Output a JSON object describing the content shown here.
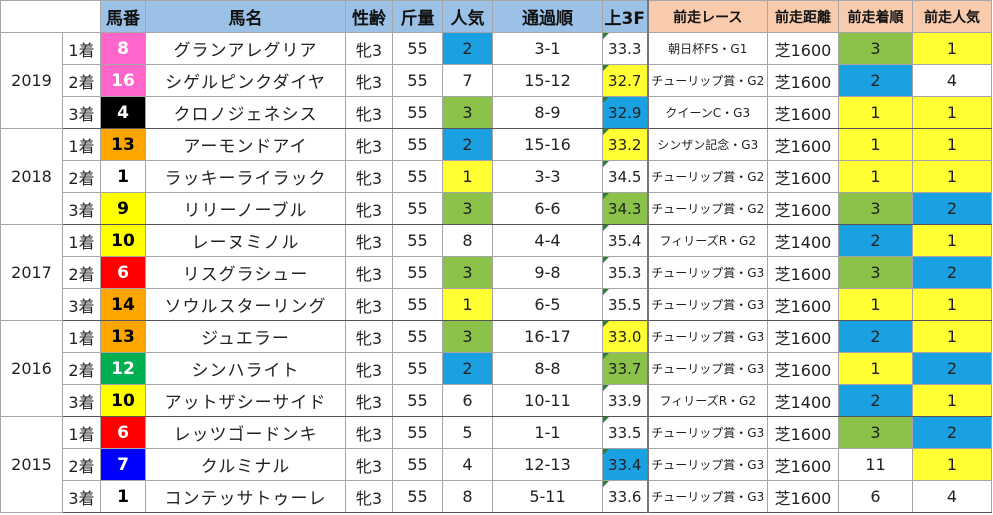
{
  "headers": {
    "blank": "",
    "number": "馬番",
    "name": "馬名",
    "sex_age": "性齢",
    "weight": "斤量",
    "popularity": "人気",
    "passing": "通過順",
    "last3f": "上3F",
    "prev_race": "前走レース",
    "prev_distance": "前走距離",
    "prev_finish": "前走着順",
    "prev_popularity": "前走人気"
  },
  "colors": {
    "header_bg": "#9bc2e6",
    "prev_header_bg": "#f8cbad",
    "blue_cell": "#1ba1e2",
    "green_cell": "#8bc34a",
    "yellow_cell": "#ffff33",
    "gate_1": "#ffffff",
    "gate_2": "#000000",
    "gate_3": "#ff0000",
    "gate_4": "#0000ff",
    "gate_5": "#ffff00",
    "gate_6": "#00b050",
    "gate_7": "#ffa500",
    "gate_8": "#ff66cc"
  },
  "years": [
    {
      "year": "2019",
      "rows": [
        {
          "place": "1着",
          "number": "8",
          "gate": 8,
          "name": "グランアレグリア",
          "sex_age": "牝3",
          "weight": "55",
          "popularity": "2",
          "pop_hl": "blue",
          "passing": "3-1",
          "last3f": "33.3",
          "l3f_hl": "",
          "prev_race": "朝日杯FS・G1",
          "prev_distance": "芝1600",
          "prev_finish": "3",
          "fin_hl": "green",
          "prev_popularity": "1",
          "ppop_hl": "yellow"
        },
        {
          "place": "2着",
          "number": "16",
          "gate": 8,
          "name": "シゲルピンクダイヤ",
          "sex_age": "牝3",
          "weight": "55",
          "popularity": "7",
          "pop_hl": "",
          "passing": "15-12",
          "last3f": "32.7",
          "l3f_hl": "yellow",
          "prev_race": "チューリップ賞・G2",
          "prev_distance": "芝1600",
          "prev_finish": "2",
          "fin_hl": "blue",
          "prev_popularity": "4",
          "ppop_hl": ""
        },
        {
          "place": "3着",
          "number": "4",
          "gate": 2,
          "name": "クロノジェネシス",
          "sex_age": "牝3",
          "weight": "55",
          "popularity": "3",
          "pop_hl": "green",
          "passing": "8-9",
          "last3f": "32.9",
          "l3f_hl": "blue",
          "prev_race": "クイーンC・G3",
          "prev_distance": "芝1600",
          "prev_finish": "1",
          "fin_hl": "yellow",
          "prev_popularity": "1",
          "ppop_hl": "yellow"
        }
      ]
    },
    {
      "year": "2018",
      "rows": [
        {
          "place": "1着",
          "number": "13",
          "gate": 7,
          "name": "アーモンドアイ",
          "sex_age": "牝3",
          "weight": "55",
          "popularity": "2",
          "pop_hl": "blue",
          "passing": "15-16",
          "last3f": "33.2",
          "l3f_hl": "yellow",
          "prev_race": "シンザン記念・G3",
          "prev_distance": "芝1600",
          "prev_finish": "1",
          "fin_hl": "yellow",
          "prev_popularity": "1",
          "ppop_hl": "yellow"
        },
        {
          "place": "2着",
          "number": "1",
          "gate": 1,
          "name": "ラッキーライラック",
          "sex_age": "牝3",
          "weight": "55",
          "popularity": "1",
          "pop_hl": "yellow",
          "passing": "3-3",
          "last3f": "34.5",
          "l3f_hl": "",
          "prev_race": "チューリップ賞・G2",
          "prev_distance": "芝1600",
          "prev_finish": "1",
          "fin_hl": "yellow",
          "prev_popularity": "1",
          "ppop_hl": "yellow"
        },
        {
          "place": "3着",
          "number": "9",
          "gate": 5,
          "name": "リリーノーブル",
          "sex_age": "牝3",
          "weight": "55",
          "popularity": "3",
          "pop_hl": "green",
          "passing": "6-6",
          "last3f": "34.3",
          "l3f_hl": "green",
          "prev_race": "チューリップ賞・G2",
          "prev_distance": "芝1600",
          "prev_finish": "3",
          "fin_hl": "green",
          "prev_popularity": "2",
          "ppop_hl": "blue"
        }
      ]
    },
    {
      "year": "2017",
      "rows": [
        {
          "place": "1着",
          "number": "10",
          "gate": 5,
          "name": "レーヌミノル",
          "sex_age": "牝3",
          "weight": "55",
          "popularity": "8",
          "pop_hl": "",
          "passing": "4-4",
          "last3f": "35.4",
          "l3f_hl": "",
          "prev_race": "フィリーズR・G2",
          "prev_distance": "芝1400",
          "prev_finish": "2",
          "fin_hl": "blue",
          "prev_popularity": "1",
          "ppop_hl": "yellow"
        },
        {
          "place": "2着",
          "number": "6",
          "gate": 3,
          "name": "リスグラシュー",
          "sex_age": "牝3",
          "weight": "55",
          "popularity": "3",
          "pop_hl": "green",
          "passing": "9-8",
          "last3f": "35.3",
          "l3f_hl": "",
          "prev_race": "チューリップ賞・G3",
          "prev_distance": "芝1600",
          "prev_finish": "3",
          "fin_hl": "green",
          "prev_popularity": "2",
          "ppop_hl": "blue"
        },
        {
          "place": "3着",
          "number": "14",
          "gate": 7,
          "name": "ソウルスターリング",
          "sex_age": "牝3",
          "weight": "55",
          "popularity": "1",
          "pop_hl": "yellow",
          "passing": "6-5",
          "last3f": "35.5",
          "l3f_hl": "",
          "prev_race": "チューリップ賞・G3",
          "prev_distance": "芝1600",
          "prev_finish": "1",
          "fin_hl": "yellow",
          "prev_popularity": "1",
          "ppop_hl": "yellow"
        }
      ]
    },
    {
      "year": "2016",
      "rows": [
        {
          "place": "1着",
          "number": "13",
          "gate": 7,
          "name": "ジュエラー",
          "sex_age": "牝3",
          "weight": "55",
          "popularity": "3",
          "pop_hl": "green",
          "passing": "16-17",
          "last3f": "33.0",
          "l3f_hl": "yellow",
          "prev_race": "チューリップ賞・G3",
          "prev_distance": "芝1600",
          "prev_finish": "2",
          "fin_hl": "blue",
          "prev_popularity": "1",
          "ppop_hl": "yellow"
        },
        {
          "place": "2着",
          "number": "12",
          "gate": 6,
          "name": "シンハライト",
          "sex_age": "牝3",
          "weight": "55",
          "popularity": "2",
          "pop_hl": "blue",
          "passing": "8-8",
          "last3f": "33.7",
          "l3f_hl": "green",
          "prev_race": "チューリップ賞・G3",
          "prev_distance": "芝1600",
          "prev_finish": "1",
          "fin_hl": "yellow",
          "prev_popularity": "2",
          "ppop_hl": "blue"
        },
        {
          "place": "3着",
          "number": "10",
          "gate": 5,
          "name": "アットザシーサイド",
          "sex_age": "牝3",
          "weight": "55",
          "popularity": "6",
          "pop_hl": "",
          "passing": "10-11",
          "last3f": "33.9",
          "l3f_hl": "",
          "prev_race": "フィリーズR・G2",
          "prev_distance": "芝1400",
          "prev_finish": "2",
          "fin_hl": "blue",
          "prev_popularity": "1",
          "ppop_hl": "yellow"
        }
      ]
    },
    {
      "year": "2015",
      "rows": [
        {
          "place": "1着",
          "number": "6",
          "gate": 3,
          "name": "レッツゴードンキ",
          "sex_age": "牝3",
          "weight": "55",
          "popularity": "5",
          "pop_hl": "",
          "passing": "1-1",
          "last3f": "33.5",
          "l3f_hl": "",
          "prev_race": "チューリップ賞・G3",
          "prev_distance": "芝1600",
          "prev_finish": "3",
          "fin_hl": "green",
          "prev_popularity": "2",
          "ppop_hl": "blue"
        },
        {
          "place": "2着",
          "number": "7",
          "gate": 4,
          "name": "クルミナル",
          "sex_age": "牝3",
          "weight": "55",
          "popularity": "4",
          "pop_hl": "",
          "passing": "12-13",
          "last3f": "33.4",
          "l3f_hl": "blue",
          "prev_race": "チューリップ賞・G3",
          "prev_distance": "芝1600",
          "prev_finish": "11",
          "fin_hl": "",
          "prev_popularity": "1",
          "ppop_hl": "yellow"
        },
        {
          "place": "3着",
          "number": "1",
          "gate": 1,
          "name": "コンテッサトゥーレ",
          "sex_age": "牝3",
          "weight": "55",
          "popularity": "8",
          "pop_hl": "",
          "passing": "5-11",
          "last3f": "33.6",
          "l3f_hl": "",
          "prev_race": "チューリップ賞・G3",
          "prev_distance": "芝1600",
          "prev_finish": "6",
          "fin_hl": "",
          "prev_popularity": "4",
          "ppop_hl": ""
        }
      ]
    }
  ]
}
